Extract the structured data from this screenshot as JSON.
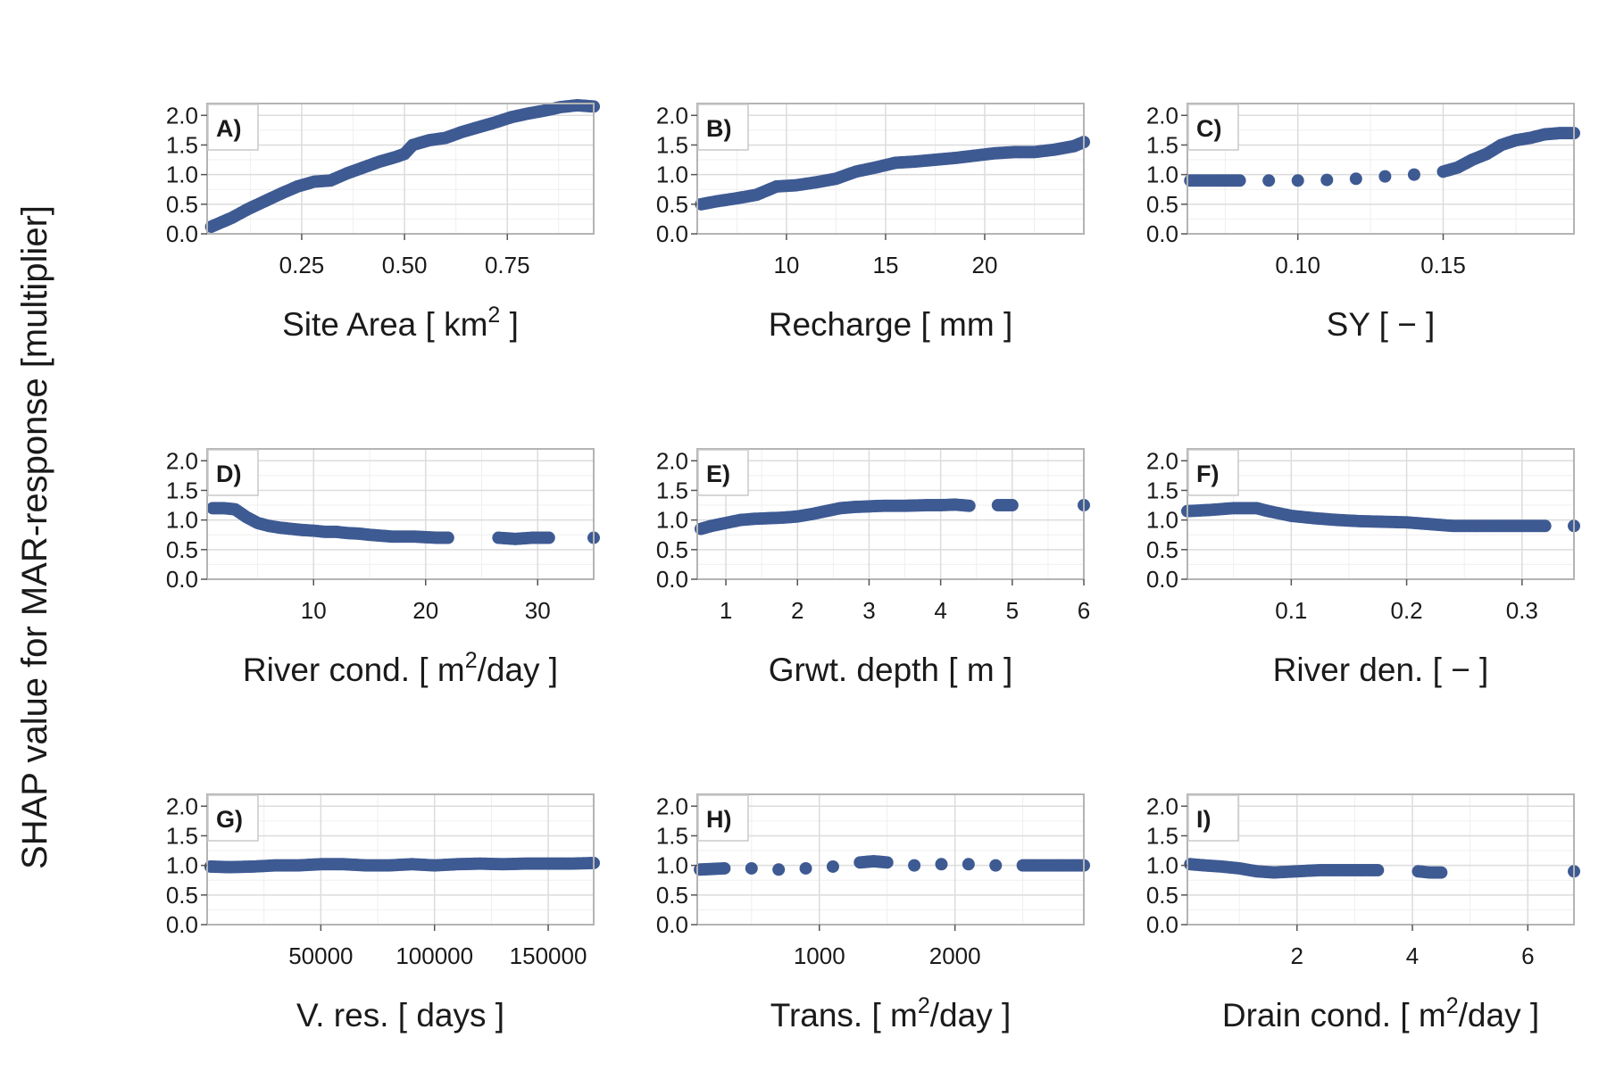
{
  "figure": {
    "ylabel": "SHAP value for MAR-response [multiplier]",
    "point_color": "#3e5a93",
    "grid_color": "#dcdcdc",
    "panel_border_color": "#b4b4b4"
  },
  "chart_data": [
    {
      "type": "scatter",
      "panel_label": "A)",
      "xlabel_parts": [
        "Site Area [ km",
        "2",
        " ]"
      ],
      "xlim": [
        0.02,
        0.96
      ],
      "ylim": [
        0,
        2.2
      ],
      "xticks": [
        0.25,
        0.5,
        0.75
      ],
      "xtick_labels": [
        "0.25",
        "0.50",
        "0.75"
      ],
      "yticks": [
        0,
        0.5,
        1,
        1.5,
        2
      ],
      "ytick_labels": [
        "0.0",
        "0.5",
        "1.0",
        "1.5",
        "2.0"
      ],
      "series": [
        {
          "x": [
            0.03,
            0.08,
            0.12,
            0.16,
            0.2,
            0.24,
            0.28,
            0.32,
            0.36,
            0.4,
            0.44,
            0.48,
            0.5,
            0.52,
            0.56,
            0.6,
            0.64,
            0.68,
            0.72,
            0.76,
            0.8,
            0.84,
            0.88,
            0.92,
            0.96
          ],
          "y": [
            0.12,
            0.27,
            0.42,
            0.55,
            0.68,
            0.8,
            0.88,
            0.9,
            1.02,
            1.12,
            1.22,
            1.3,
            1.35,
            1.5,
            1.58,
            1.62,
            1.72,
            1.8,
            1.88,
            1.97,
            2.03,
            2.08,
            2.14,
            2.17,
            2.15
          ]
        }
      ]
    },
    {
      "type": "scatter",
      "panel_label": "B)",
      "xlabel_parts": [
        "Recharge [ mm ]"
      ],
      "xlim": [
        5.5,
        25
      ],
      "ylim": [
        0,
        2.2
      ],
      "xticks": [
        10,
        15,
        20
      ],
      "xtick_labels": [
        "10",
        "15",
        "20"
      ],
      "yticks": [
        0,
        0.5,
        1,
        1.5,
        2
      ],
      "ytick_labels": [
        "0.0",
        "0.5",
        "1.0",
        "1.5",
        "2.0"
      ],
      "series": [
        {
          "x": [
            5.7,
            6.5,
            7.5,
            8.5,
            9.5,
            10.5,
            11.5,
            12.5,
            13.5,
            14.5,
            15.5,
            16.5,
            17.5,
            18.5,
            19.5,
            20.5,
            21.5,
            22.5,
            23.5,
            24.5,
            25
          ],
          "y": [
            0.5,
            0.55,
            0.6,
            0.66,
            0.8,
            0.82,
            0.87,
            0.93,
            1.05,
            1.12,
            1.2,
            1.22,
            1.25,
            1.28,
            1.32,
            1.36,
            1.38,
            1.38,
            1.42,
            1.48,
            1.55
          ]
        }
      ]
    },
    {
      "type": "scatter",
      "panel_label": "C)",
      "xlabel_parts": [
        "SY [ − ]"
      ],
      "xlim": [
        0.062,
        0.195
      ],
      "ylim": [
        0,
        2.2
      ],
      "xticks": [
        0.1,
        0.15
      ],
      "xtick_labels": [
        "0.10",
        "0.15"
      ],
      "yticks": [
        0,
        0.5,
        1,
        1.5,
        2
      ],
      "ytick_labels": [
        "0.0",
        "0.5",
        "1.0",
        "1.5",
        "2.0"
      ],
      "series": [
        {
          "x": [
            0.063,
            0.072,
            0.08,
            0.09,
            0.1,
            0.11,
            0.12,
            0.13,
            0.14,
            0.15,
            0.155,
            0.16,
            0.165,
            0.17,
            0.175,
            0.18,
            0.185,
            0.19,
            0.195
          ],
          "y": [
            0.9,
            0.9,
            0.9,
            0.9,
            0.9,
            0.91,
            0.93,
            0.97,
            1.0,
            1.05,
            1.12,
            1.25,
            1.35,
            1.5,
            1.58,
            1.62,
            1.68,
            1.7,
            1.7
          ]
        }
      ]
    },
    {
      "type": "scatter",
      "panel_label": "D)",
      "xlabel_parts": [
        "River cond. [ m",
        "2",
        "/day ]"
      ],
      "xlim": [
        0.5,
        35
      ],
      "ylim": [
        0,
        2.2
      ],
      "xticks": [
        10,
        20,
        30
      ],
      "xtick_labels": [
        "10",
        "20",
        "30"
      ],
      "yticks": [
        0,
        0.5,
        1,
        1.5,
        2
      ],
      "ytick_labels": [
        "0.0",
        "0.5",
        "1.0",
        "1.5",
        "2.0"
      ],
      "series": [
        {
          "x": [
            1,
            2,
            3,
            4,
            5,
            6,
            7,
            8,
            9,
            10,
            11,
            12,
            13,
            14,
            15,
            17,
            19,
            20,
            21,
            22,
            26.5,
            28,
            29.5,
            31,
            35
          ],
          "y": [
            1.2,
            1.2,
            1.18,
            1.05,
            0.95,
            0.9,
            0.87,
            0.85,
            0.83,
            0.82,
            0.8,
            0.8,
            0.78,
            0.77,
            0.75,
            0.72,
            0.72,
            0.71,
            0.7,
            0.7,
            0.7,
            0.68,
            0.7,
            0.7,
            0.7
          ]
        }
      ]
    },
    {
      "type": "scatter",
      "panel_label": "E)",
      "xlabel_parts": [
        "Grwt. depth [ m ]"
      ],
      "xlim": [
        0.6,
        6
      ],
      "ylim": [
        0,
        2.2
      ],
      "xticks": [
        1,
        2,
        3,
        4,
        5,
        6
      ],
      "xtick_labels": [
        "1",
        "2",
        "3",
        "4",
        "5",
        "6"
      ],
      "yticks": [
        0,
        0.5,
        1,
        1.5,
        2
      ],
      "ytick_labels": [
        "0.0",
        "0.5",
        "1.0",
        "1.5",
        "2.0"
      ],
      "series": [
        {
          "x": [
            0.65,
            0.8,
            1.0,
            1.2,
            1.4,
            1.6,
            1.8,
            2.0,
            2.2,
            2.4,
            2.6,
            2.8,
            3.0,
            3.2,
            3.5,
            3.8,
            4.0,
            4.2,
            4.4,
            4.8,
            5.0,
            6.0
          ],
          "y": [
            0.85,
            0.9,
            0.95,
            1.0,
            1.02,
            1.03,
            1.04,
            1.06,
            1.1,
            1.15,
            1.2,
            1.22,
            1.23,
            1.24,
            1.24,
            1.25,
            1.25,
            1.26,
            1.24,
            1.25,
            1.25,
            1.25
          ]
        }
      ]
    },
    {
      "type": "scatter",
      "panel_label": "F)",
      "xlabel_parts": [
        "River den. [ − ]"
      ],
      "xlim": [
        0.01,
        0.345
      ],
      "ylim": [
        0,
        2.2
      ],
      "xticks": [
        0.1,
        0.2,
        0.3
      ],
      "xtick_labels": [
        "0.1",
        "0.2",
        "0.3"
      ],
      "yticks": [
        0,
        0.5,
        1,
        1.5,
        2
      ],
      "ytick_labels": [
        "0.0",
        "0.5",
        "1.0",
        "1.5",
        "2.0"
      ],
      "series": [
        {
          "x": [
            0.01,
            0.03,
            0.05,
            0.07,
            0.08,
            0.1,
            0.12,
            0.14,
            0.16,
            0.18,
            0.2,
            0.22,
            0.24,
            0.26,
            0.28,
            0.3,
            0.32,
            0.345
          ],
          "y": [
            1.15,
            1.17,
            1.2,
            1.2,
            1.15,
            1.07,
            1.03,
            1.0,
            0.98,
            0.97,
            0.96,
            0.93,
            0.9,
            0.9,
            0.9,
            0.9,
            0.9,
            0.9
          ]
        }
      ]
    },
    {
      "type": "scatter",
      "panel_label": "G)",
      "xlabel_parts": [
        "V. res. [ days ]"
      ],
      "xlim": [
        0,
        170000
      ],
      "ylim": [
        0,
        2.2
      ],
      "xticks": [
        50000,
        100000,
        150000
      ],
      "xtick_labels": [
        "50000",
        "100000",
        "150000"
      ],
      "yticks": [
        0,
        0.5,
        1,
        1.5,
        2
      ],
      "ytick_labels": [
        "0.0",
        "0.5",
        "1.0",
        "1.5",
        "2.0"
      ],
      "series": [
        {
          "x": [
            1500,
            10000,
            20000,
            30000,
            40000,
            50000,
            60000,
            70000,
            80000,
            90000,
            100000,
            110000,
            120000,
            130000,
            140000,
            150000,
            160000,
            170000
          ],
          "y": [
            0.98,
            0.97,
            0.98,
            1.0,
            1.0,
            1.02,
            1.02,
            1.0,
            1.0,
            1.02,
            1.0,
            1.02,
            1.03,
            1.02,
            1.03,
            1.03,
            1.03,
            1.04
          ]
        }
      ]
    },
    {
      "type": "scatter",
      "panel_label": "H)",
      "xlabel_parts": [
        "Trans. [ m",
        "2",
        "/day ]"
      ],
      "xlim": [
        100,
        2950
      ],
      "ylim": [
        0,
        2.2
      ],
      "xticks": [
        1000,
        2000
      ],
      "xtick_labels": [
        "1000",
        "2000"
      ],
      "yticks": [
        0,
        0.5,
        1,
        1.5,
        2
      ],
      "ytick_labels": [
        "0.0",
        "0.5",
        "1.0",
        "1.5",
        "2.0"
      ],
      "series": [
        {
          "x": [
            120,
            300,
            500,
            700,
            900,
            1100,
            1300,
            1400,
            1500,
            1700,
            1900,
            2100,
            2300,
            2500,
            2600,
            2750,
            2800,
            2950
          ],
          "y": [
            0.93,
            0.95,
            0.95,
            0.93,
            0.95,
            0.98,
            1.05,
            1.07,
            1.05,
            1.0,
            1.02,
            1.02,
            1.0,
            1.0,
            1.0,
            1.0,
            1.0,
            1.0
          ]
        }
      ]
    },
    {
      "type": "scatter",
      "panel_label": "I)",
      "xlabel_parts": [
        "Drain cond. [ m",
        "2",
        "/day ]"
      ],
      "xlim": [
        0.1,
        6.8
      ],
      "ylim": [
        0,
        2.2
      ],
      "xticks": [
        2,
        4,
        6
      ],
      "xtick_labels": [
        "2",
        "4",
        "6"
      ],
      "yticks": [
        0,
        0.5,
        1,
        1.5,
        2
      ],
      "ytick_labels": [
        "0.0",
        "0.5",
        "1.0",
        "1.5",
        "2.0"
      ],
      "series": [
        {
          "x": [
            0.15,
            0.4,
            0.7,
            1.0,
            1.3,
            1.6,
            2.0,
            2.4,
            2.8,
            3.1,
            3.4,
            4.1,
            4.3,
            4.5,
            6.8
          ],
          "y": [
            1.02,
            1.0,
            0.98,
            0.95,
            0.9,
            0.88,
            0.9,
            0.92,
            0.92,
            0.92,
            0.92,
            0.9,
            0.88,
            0.88,
            0.9
          ]
        }
      ]
    }
  ]
}
